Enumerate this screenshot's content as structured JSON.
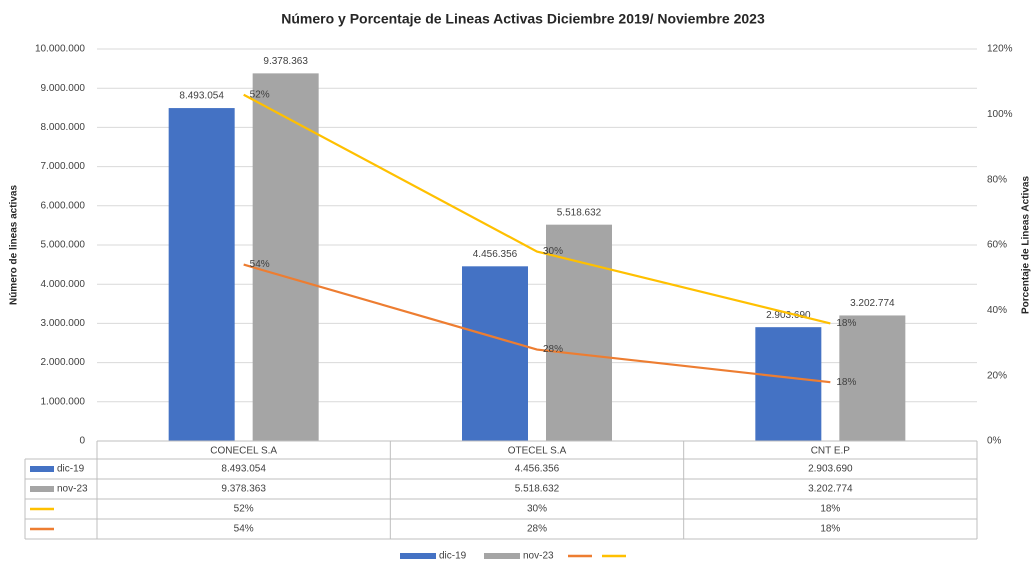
{
  "chart_data": {
    "type": "combo",
    "title": "Número y Porcentaje de Lineas Activas Diciembre 2019/ Noviembre 2023",
    "y_label": "Número de lineas activas",
    "y2_label": "Porcentaje de Lineas Activas",
    "categories": [
      "CONECEL S.A",
      "OTECEL S.A",
      "CNT E.P"
    ],
    "series": [
      {
        "name": "dic-19",
        "type": "bar",
        "color": "#4472c4",
        "values": [
          8493054,
          4456356,
          2903690
        ],
        "value_labels": [
          "8.493.054",
          "4.456.356",
          "2.903.690"
        ]
      },
      {
        "name": "nov-23",
        "type": "bar",
        "color": "#a5a5a5",
        "values": [
          9378363,
          5518632,
          3202774
        ],
        "value_labels": [
          "9.378.363",
          "5.518.632",
          "3.202.774"
        ]
      },
      {
        "type": "line",
        "axis": "y2",
        "color": "#ffc000",
        "values": [
          52,
          30,
          18
        ],
        "value_labels": [
          "52%",
          "30%",
          "18%"
        ]
      },
      {
        "type": "line",
        "axis": "y2",
        "color": "#ed7d31",
        "values": [
          54,
          28,
          18
        ],
        "value_labels": [
          "54%",
          "28%",
          "18%"
        ]
      }
    ],
    "stacked_lines": true,
    "ylim": [
      0,
      10000000
    ],
    "yticks": [
      0,
      {
        "value": 1000000,
        "label": "1.000.000"
      },
      {
        "value": 2000000,
        "label": "2.000.000"
      },
      {
        "value": 3000000,
        "label": "3.000.000"
      },
      {
        "value": 4000000,
        "label": "4.000.000"
      },
      {
        "value": 5000000,
        "label": "5.000.000"
      },
      {
        "value": 6000000,
        "label": "6.000.000"
      },
      {
        "value": 7000000,
        "label": "7.000.000"
      },
      {
        "value": 8000000,
        "label": "8.000.000"
      },
      {
        "value": 9000000,
        "label": "9.000.000"
      },
      {
        "value": 10000000,
        "label": "10.000.000"
      }
    ],
    "y2lim": [
      0,
      120
    ],
    "y2ticks": [
      {
        "value": 0,
        "label": "0%"
      },
      {
        "value": 20,
        "label": "20%"
      },
      {
        "value": 40,
        "label": "40%"
      },
      {
        "value": 60,
        "label": "60%"
      },
      {
        "value": 80,
        "label": "80%"
      },
      {
        "value": 100,
        "label": "100%"
      },
      {
        "value": 120,
        "label": "120%"
      }
    ],
    "grid": true,
    "data_table": true
  }
}
